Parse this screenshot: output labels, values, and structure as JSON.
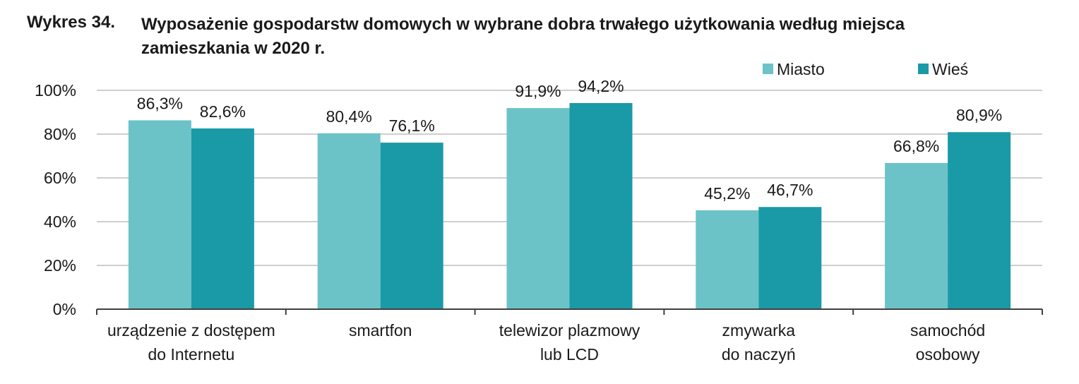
{
  "chart_data": {
    "type": "bar",
    "figure_number": "Wykres 34.",
    "title": "Wyposażenie gospodarstw domowych w wybrane dobra trwałego użytkowania według miejsca zamieszkania w 2020 r.",
    "categories": [
      [
        "urządzenie z dostępem",
        "do Internetu"
      ],
      [
        "smartfon"
      ],
      [
        "telewizor plazmowy",
        "lub LCD"
      ],
      [
        "zmywarka",
        "do naczyń"
      ],
      [
        "samochód",
        "osobowy"
      ]
    ],
    "series": [
      {
        "name": "Miasto",
        "color": "#6bc3c8",
        "values": [
          86.3,
          80.4,
          91.9,
          45.2,
          66.8
        ],
        "labels": [
          "86,3%",
          "80,4%",
          "91,9%",
          "45,2%",
          "66,8%"
        ]
      },
      {
        "name": "Wieś",
        "color": "#1a9aa6",
        "values": [
          82.6,
          76.1,
          94.2,
          46.7,
          80.9
        ],
        "labels": [
          "82,6%",
          "76,1%",
          "94,2%",
          "46,7%",
          "80,9%"
        ]
      }
    ],
    "ylim": [
      0,
      100
    ],
    "yticks": [
      0,
      20,
      40,
      60,
      80,
      100
    ],
    "ytick_labels": [
      "0%",
      "20%",
      "40%",
      "60%",
      "80%",
      "100%"
    ],
    "grid": true,
    "legend_position": "top-right",
    "gridline_color": "#bfbfbf",
    "axis_color": "#404040"
  }
}
